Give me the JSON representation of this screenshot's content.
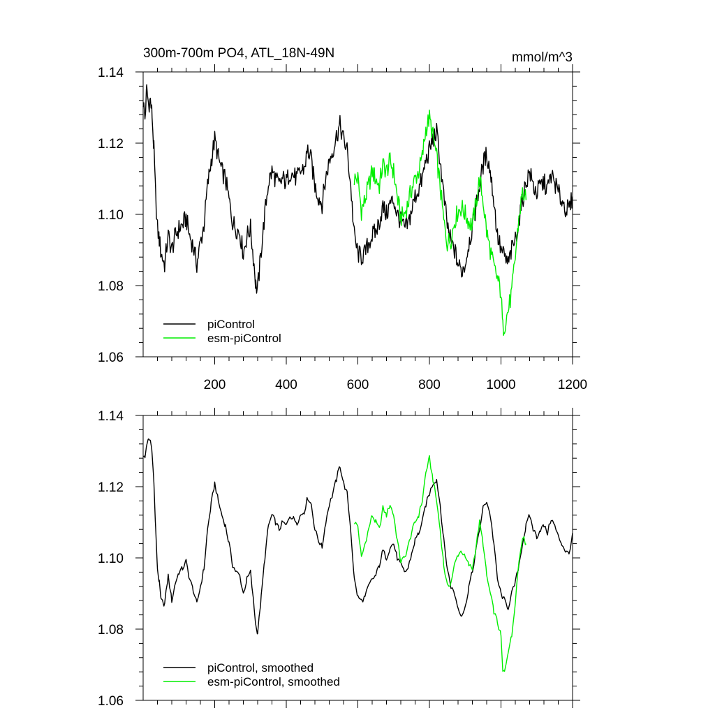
{
  "header": {
    "title": "300m-700m PO4, ATL_18N-49N",
    "units": "mmol/m^3"
  },
  "colors": {
    "pi": "#000000",
    "esm": "#00ee00"
  },
  "chart_data": [
    {
      "type": "line",
      "title": "300m-700m PO4, ATL_18N-49N",
      "units": "mmol/m^3",
      "xlim": [
        0,
        1200
      ],
      "ylim": [
        1.06,
        1.14
      ],
      "xticks": [
        "200",
        "400",
        "600",
        "800",
        "1000",
        "1200"
      ],
      "yticks": [
        "1.06",
        "1.08",
        "1.10",
        "1.12",
        "1.14"
      ],
      "legend": {
        "placement": "bottom-left",
        "entries": [
          "piControl",
          "esm-piControl"
        ]
      },
      "series": [
        {
          "name": "piControl",
          "color": "#000000",
          "x": [
            0,
            5,
            10,
            15,
            20,
            25,
            30,
            35,
            40,
            45,
            50,
            60,
            70,
            80,
            90,
            100,
            110,
            120,
            130,
            140,
            150,
            160,
            170,
            180,
            190,
            200,
            210,
            220,
            230,
            240,
            250,
            260,
            270,
            280,
            290,
            300,
            310,
            315,
            320,
            330,
            340,
            350,
            360,
            370,
            380,
            390,
            400,
            410,
            420,
            430,
            440,
            450,
            460,
            470,
            480,
            490,
            500,
            510,
            520,
            530,
            540,
            550,
            560,
            570,
            580,
            590,
            600,
            610,
            620,
            630,
            640,
            650,
            660,
            670,
            680,
            690,
            700,
            710,
            720,
            730,
            740,
            750,
            760,
            770,
            780,
            790,
            800,
            810,
            820,
            830,
            840,
            850,
            860,
            870,
            880,
            890,
            900,
            910,
            920,
            930,
            940,
            950,
            960,
            970,
            980,
            990,
            1000,
            1010,
            1020,
            1030,
            1040,
            1050,
            1060,
            1070,
            1080,
            1090,
            1100,
            1110,
            1120,
            1130,
            1140,
            1150,
            1160,
            1170,
            1180,
            1190,
            1200
          ],
          "y": [
            1.132,
            1.127,
            1.135,
            1.131,
            1.132,
            1.128,
            1.118,
            1.105,
            1.096,
            1.093,
            1.089,
            1.086,
            1.094,
            1.09,
            1.094,
            1.096,
            1.097,
            1.099,
            1.094,
            1.091,
            1.086,
            1.092,
            1.097,
            1.108,
            1.115,
            1.121,
            1.116,
            1.112,
            1.11,
            1.104,
            1.098,
            1.096,
            1.095,
            1.089,
            1.094,
            1.096,
            1.086,
            1.08,
            1.079,
            1.09,
            1.1,
            1.109,
            1.112,
            1.11,
            1.108,
            1.11,
            1.109,
            1.112,
            1.111,
            1.11,
            1.112,
            1.113,
            1.118,
            1.115,
            1.108,
            1.105,
            1.103,
            1.11,
            1.115,
            1.118,
            1.122,
            1.125,
            1.121,
            1.118,
            1.108,
            1.094,
            1.089,
            1.088,
            1.089,
            1.092,
            1.094,
            1.095,
            1.098,
            1.102,
            1.1,
            1.103,
            1.104,
            1.1,
            1.098,
            1.096,
            1.097,
            1.101,
            1.105,
            1.107,
            1.11,
            1.115,
            1.118,
            1.121,
            1.123,
            1.115,
            1.105,
            1.097,
            1.092,
            1.09,
            1.086,
            1.084,
            1.086,
            1.092,
            1.096,
            1.102,
            1.108,
            1.114,
            1.117,
            1.112,
            1.104,
            1.094,
            1.09,
            1.088,
            1.086,
            1.09,
            1.093,
            1.098,
            1.104,
            1.109,
            1.112,
            1.108,
            1.106,
            1.108,
            1.109,
            1.107,
            1.111,
            1.109,
            1.106,
            1.104,
            1.102,
            1.101,
            1.105
          ]
        },
        {
          "name": "esm-piControl",
          "color": "#00ee00",
          "x": [
            590,
            600,
            610,
            620,
            630,
            640,
            650,
            660,
            670,
            680,
            690,
            700,
            710,
            720,
            730,
            740,
            750,
            760,
            770,
            780,
            790,
            800,
            810,
            820,
            830,
            840,
            850,
            860,
            870,
            880,
            890,
            900,
            910,
            920,
            930,
            940,
            950,
            960,
            970,
            980,
            990,
            1000,
            1005,
            1010,
            1020,
            1030,
            1040,
            1050,
            1060,
            1070
          ],
          "y": [
            1.11,
            1.11,
            1.101,
            1.104,
            1.108,
            1.112,
            1.11,
            1.108,
            1.114,
            1.112,
            1.115,
            1.112,
            1.105,
            1.099,
            1.1,
            1.103,
            1.107,
            1.11,
            1.112,
            1.116,
            1.124,
            1.127,
            1.122,
            1.116,
            1.108,
            1.098,
            1.092,
            1.093,
            1.098,
            1.101,
            1.102,
            1.1,
            1.098,
            1.097,
            1.103,
            1.11,
            1.104,
            1.095,
            1.09,
            1.085,
            1.082,
            1.078,
            1.068,
            1.069,
            1.073,
            1.078,
            1.088,
            1.099,
            1.106,
            1.104
          ]
        }
      ]
    },
    {
      "type": "line",
      "title": "",
      "xlim": [
        0,
        1200
      ],
      "ylim": [
        1.06,
        1.14
      ],
      "yticks": [
        "1.06",
        "1.08",
        "1.10",
        "1.12",
        "1.14"
      ],
      "legend": {
        "placement": "bottom-left",
        "entries": [
          "piControl, smoothed",
          "esm-piControl, smoothed"
        ]
      },
      "series": [
        {
          "name": "piControl, smoothed",
          "color": "#000000",
          "x": [
            0,
            5,
            10,
            15,
            20,
            25,
            30,
            35,
            40,
            45,
            50,
            60,
            70,
            80,
            90,
            100,
            110,
            120,
            130,
            140,
            150,
            160,
            170,
            180,
            190,
            200,
            210,
            220,
            230,
            240,
            250,
            260,
            270,
            280,
            290,
            300,
            310,
            315,
            320,
            330,
            340,
            350,
            360,
            370,
            380,
            390,
            400,
            410,
            420,
            430,
            440,
            450,
            460,
            470,
            480,
            490,
            500,
            510,
            520,
            530,
            540,
            550,
            560,
            570,
            580,
            590,
            600,
            610,
            620,
            630,
            640,
            650,
            660,
            670,
            680,
            690,
            700,
            710,
            720,
            730,
            740,
            750,
            760,
            770,
            780,
            790,
            800,
            810,
            820,
            830,
            840,
            850,
            860,
            870,
            880,
            890,
            900,
            910,
            920,
            930,
            940,
            950,
            960,
            970,
            980,
            990,
            1000,
            1010,
            1020,
            1030,
            1040,
            1050,
            1060,
            1070,
            1080,
            1090,
            1100,
            1110,
            1120,
            1130,
            1140,
            1150,
            1160,
            1170,
            1180,
            1190,
            1200
          ],
          "y": [
            1.129,
            1.128,
            1.132,
            1.133,
            1.133,
            1.13,
            1.121,
            1.108,
            1.097,
            1.093,
            1.088,
            1.087,
            1.095,
            1.088,
            1.093,
            1.096,
            1.097,
            1.099,
            1.094,
            1.091,
            1.087,
            1.092,
            1.097,
            1.108,
            1.115,
            1.121,
            1.116,
            1.112,
            1.109,
            1.104,
            1.098,
            1.096,
            1.095,
            1.09,
            1.094,
            1.096,
            1.086,
            1.081,
            1.079,
            1.089,
            1.1,
            1.109,
            1.112,
            1.11,
            1.108,
            1.11,
            1.109,
            1.112,
            1.111,
            1.11,
            1.112,
            1.113,
            1.117,
            1.115,
            1.108,
            1.105,
            1.103,
            1.11,
            1.115,
            1.118,
            1.122,
            1.126,
            1.121,
            1.118,
            1.108,
            1.094,
            1.089,
            1.088,
            1.089,
            1.092,
            1.094,
            1.095,
            1.098,
            1.102,
            1.1,
            1.103,
            1.104,
            1.1,
            1.098,
            1.096,
            1.097,
            1.101,
            1.105,
            1.107,
            1.11,
            1.115,
            1.118,
            1.121,
            1.122,
            1.115,
            1.105,
            1.097,
            1.092,
            1.09,
            1.086,
            1.084,
            1.086,
            1.092,
            1.096,
            1.102,
            1.108,
            1.114,
            1.116,
            1.112,
            1.104,
            1.094,
            1.09,
            1.088,
            1.086,
            1.09,
            1.093,
            1.098,
            1.104,
            1.109,
            1.112,
            1.108,
            1.106,
            1.108,
            1.109,
            1.107,
            1.111,
            1.109,
            1.106,
            1.104,
            1.102,
            1.101,
            1.107
          ]
        },
        {
          "name": "esm-piControl, smoothed",
          "color": "#00ee00",
          "x": [
            590,
            600,
            610,
            620,
            630,
            640,
            650,
            660,
            670,
            680,
            690,
            700,
            710,
            720,
            730,
            740,
            750,
            760,
            770,
            780,
            790,
            800,
            810,
            820,
            830,
            840,
            850,
            860,
            870,
            880,
            890,
            900,
            910,
            920,
            930,
            940,
            950,
            960,
            970,
            980,
            990,
            1000,
            1005,
            1010,
            1020,
            1030,
            1040,
            1050,
            1060,
            1070
          ],
          "y": [
            1.11,
            1.109,
            1.1,
            1.104,
            1.108,
            1.112,
            1.11,
            1.108,
            1.114,
            1.112,
            1.115,
            1.112,
            1.105,
            1.099,
            1.1,
            1.103,
            1.107,
            1.11,
            1.112,
            1.116,
            1.124,
            1.128,
            1.122,
            1.116,
            1.108,
            1.098,
            1.092,
            1.093,
            1.098,
            1.101,
            1.102,
            1.1,
            1.098,
            1.097,
            1.103,
            1.11,
            1.104,
            1.095,
            1.09,
            1.085,
            1.082,
            1.078,
            1.068,
            1.068,
            1.074,
            1.078,
            1.088,
            1.099,
            1.106,
            1.104
          ]
        }
      ]
    }
  ]
}
